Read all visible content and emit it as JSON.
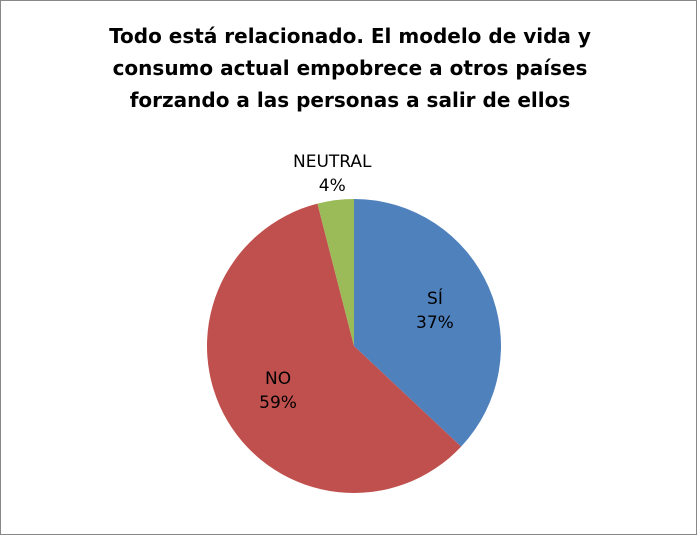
{
  "chart_data": {
    "type": "pie",
    "title": "Todo está relacionado. El modelo de vida y consumo actual empobrece a otros países forzando a las personas a salir de ellos",
    "categories": [
      "SÍ",
      "NO",
      "NEUTRAL"
    ],
    "values": [
      37,
      59,
      4
    ],
    "value_labels": [
      "37%",
      "59%",
      "4%"
    ],
    "colors": [
      "#4f81bd",
      "#c0504d",
      "#9bbb59"
    ]
  }
}
